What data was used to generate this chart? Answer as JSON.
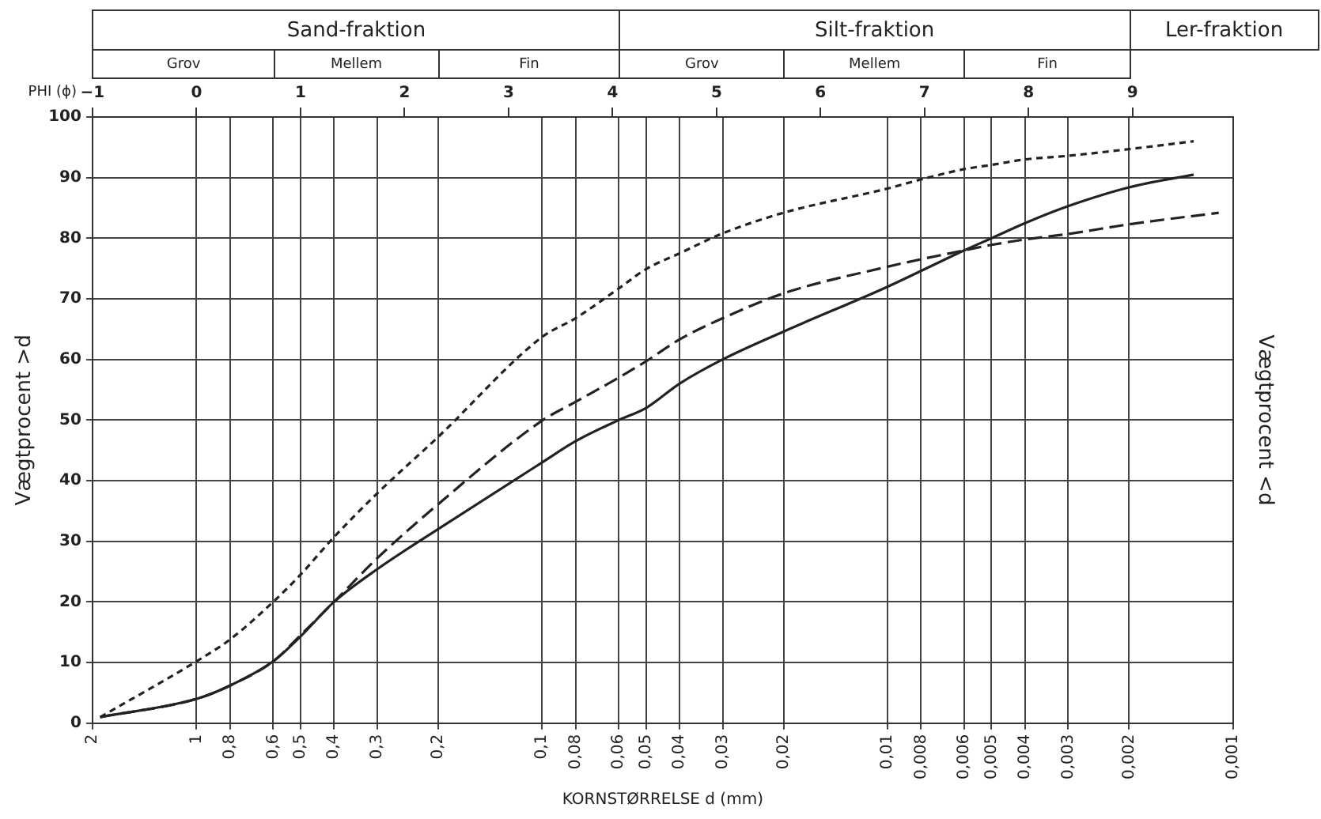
{
  "chart_data": [
    {
      "type": "other",
      "annotations": [
        "Sand-fraktion",
        "Silt-fraktion",
        "Ler-fraktion",
        "Grov",
        "Mellem",
        "Fin",
        "Grov",
        "Mellem",
        "Fin"
      ]
    },
    {
      "type": "line",
      "xlabel": "KORNSTØRRELSE d (mm)",
      "ylabel": "Vægtprocent >d",
      "y2label": "Vægtprocent <d",
      "x2label": "PHI (ϕ)",
      "log": "x",
      "grid": true,
      "marker": "none",
      "xlim": [
        2,
        0.001
      ],
      "xticks": [
        2,
        1,
        {
          "value": 0.8,
          "label": "0,8"
        },
        {
          "value": 0.6,
          "label": "0,6"
        },
        {
          "value": 0.5,
          "label": "0,5"
        },
        {
          "value": 0.4,
          "label": "0,4"
        },
        {
          "value": 0.3,
          "label": "0,3"
        },
        {
          "value": 0.2,
          "label": "0,2"
        },
        {
          "value": 0.1,
          "label": "0,1"
        },
        {
          "value": 0.08,
          "label": "0,08"
        },
        {
          "value": 0.06,
          "label": "0,06"
        },
        {
          "value": 0.05,
          "label": "0,05"
        },
        {
          "value": 0.04,
          "label": "0,04"
        },
        {
          "value": 0.03,
          "label": "0,03"
        },
        {
          "value": 0.02,
          "label": "0,02"
        },
        {
          "value": 0.01,
          "label": "0,01"
        },
        {
          "value": 0.008,
          "label": "0,008"
        },
        {
          "value": 0.006,
          "label": "0,006"
        },
        {
          "value": 0.005,
          "label": "0,005"
        },
        {
          "value": 0.004,
          "label": "0,004"
        },
        {
          "value": 0.003,
          "label": "0,003"
        },
        {
          "value": 0.002,
          "label": "0,002"
        },
        {
          "value": 0.001,
          "label": "0,001"
        }
      ],
      "x2lim": [
        -1,
        9.966
      ],
      "x2ticks": [
        {
          "value": -1,
          "label": "−1"
        },
        0,
        1,
        2,
        3,
        4,
        5,
        6,
        7,
        8,
        9
      ],
      "ylim": [
        0,
        100
      ],
      "yticks": [
        0,
        10,
        20,
        30,
        40,
        50,
        60,
        70,
        80,
        90,
        100
      ],
      "series": [
        {
          "color": "#222222",
          "line_style": "solid",
          "x": [
            1.9,
            1,
            0.8,
            0.6,
            0.5,
            0.4,
            0.3,
            0.2,
            0.1,
            0.08,
            0.06,
            0.05,
            0.04,
            0.03,
            0.02,
            0.01,
            0.006,
            0.005,
            0.004,
            0.003,
            0.002,
            0.0013
          ],
          "values": [
            1,
            4,
            6.2,
            10.2,
            14.3,
            20,
            25.4,
            32,
            43,
            46.5,
            50,
            52,
            56,
            60,
            64.6,
            72,
            78,
            80,
            82.5,
            85.3,
            88.4,
            90.5
          ]
        },
        {
          "color": "#222222",
          "line_style": "dotted",
          "x": [
            1.9,
            1,
            0.8,
            0.6,
            0.5,
            0.4,
            0.3,
            0.2,
            0.1,
            0.08,
            0.06,
            0.05,
            0.04,
            0.03,
            0.02,
            0.01,
            0.008,
            0.006,
            0.005,
            0.004,
            0.003,
            0.002,
            0.0013
          ],
          "values": [
            1,
            10.2,
            13.8,
            20,
            24.5,
            30.7,
            37.9,
            47.2,
            63.7,
            66.8,
            71.7,
            74.9,
            77.5,
            80.8,
            84.2,
            88.2,
            89.7,
            91.4,
            92.1,
            93,
            93.6,
            94.7,
            96
          ]
        },
        {
          "color": "#222222",
          "line_style": "dashed",
          "x": [
            1.9,
            1,
            0.8,
            0.6,
            0.5,
            0.4,
            0.3,
            0.2,
            0.1,
            0.08,
            0.06,
            0.05,
            0.04,
            0.03,
            0.02,
            0.01,
            0.006,
            0.005,
            0.004,
            0.003,
            0.002,
            0.0011
          ],
          "values": [
            1,
            4,
            6.2,
            10.2,
            14.5,
            20,
            27.2,
            36.1,
            49.9,
            53,
            57,
            59.7,
            63.3,
            66.8,
            70.9,
            75.3,
            78,
            78.9,
            79.8,
            80.7,
            82.3,
            84.2
          ]
        }
      ]
    }
  ]
}
